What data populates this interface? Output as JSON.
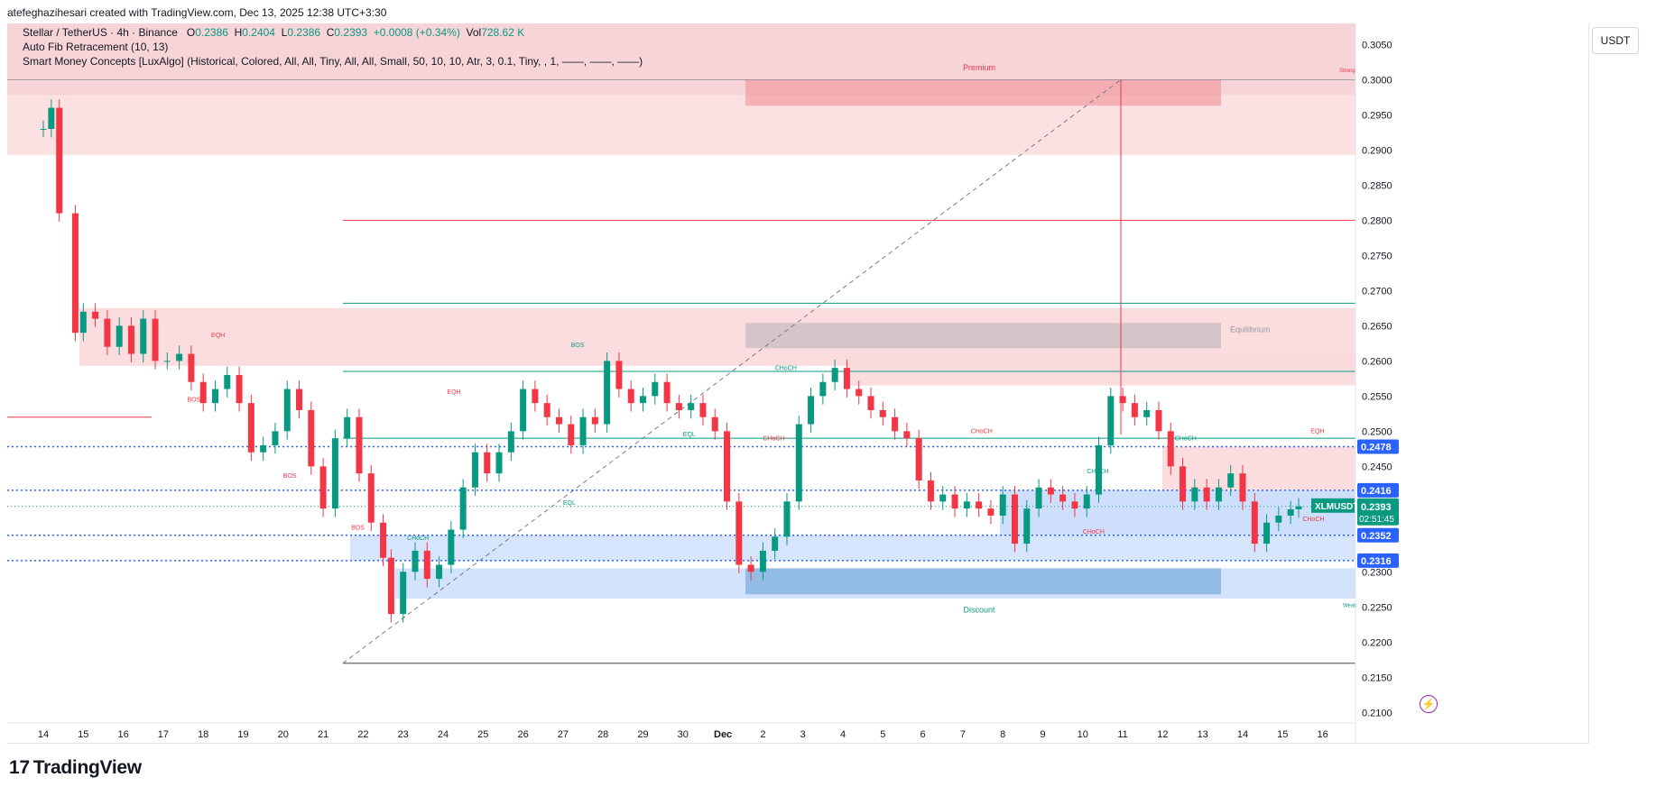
{
  "header": {
    "text": "atefeghazihesari created with TradingView.com, Dec 13, 2025 12:38 UTC+3:30"
  },
  "legend": {
    "line1_title": "Stellar / TetherUS · 4h · Binance",
    "open_label": "O",
    "open": "0.2386",
    "high_label": "H",
    "high": "0.2404",
    "low_label": "L",
    "low": "0.2386",
    "close_label": "C",
    "close": "0.2393",
    "change": "+0.0008 (+0.34%)",
    "vol_label": "Vol",
    "vol": "728.62 K",
    "line2": "Auto Fib Retracement (10, 13)",
    "line3": "Smart Money Concepts [LuxAlgo] (Historical, Colored, All, All, Tiny, All, All, Small, 50, 10, 10, Atr, 3, 0.1, Tiny, , 1, ——, ——, ——)"
  },
  "currency": "USDT",
  "footer": {
    "brand": "TradingView",
    "mark": "17"
  },
  "colors": {
    "up": "#089981",
    "down": "#f23645",
    "premium": "#f23645",
    "discount": "#2962ff"
  },
  "icons": {
    "bolt": "lightning-icon",
    "logo": "tradingview-logo-icon"
  },
  "chart_data": {
    "type": "candlestick",
    "symbol": "XLMUSDT",
    "price_axis": {
      "ylim": [
        0.2085,
        0.308
      ],
      "ticks": [
        "0.3050",
        "0.3000",
        "0.2950",
        "0.2900",
        "0.2850",
        "0.2800",
        "0.2750",
        "0.2700",
        "0.2650",
        "0.2600",
        "0.2550",
        "0.2500",
        "0.2450",
        "0.2400",
        "0.2350",
        "0.2300",
        "0.2250",
        "0.2200",
        "0.2150",
        "0.2100"
      ],
      "tick_values": [
        0.305,
        0.3,
        0.295,
        0.29,
        0.285,
        0.28,
        0.275,
        0.27,
        0.265,
        0.26,
        0.255,
        0.25,
        0.245,
        0.24,
        0.235,
        0.23,
        0.225,
        0.22,
        0.215,
        0.21
      ]
    },
    "time_axis": {
      "labels": [
        "14",
        "15",
        "16",
        "17",
        "18",
        "19",
        "20",
        "21",
        "22",
        "23",
        "24",
        "25",
        "26",
        "27",
        "28",
        "29",
        "30",
        "Dec",
        "2",
        "3",
        "4",
        "5",
        "6",
        "7",
        "8",
        "9",
        "10",
        "11",
        "12",
        "13",
        "14",
        "15",
        "16"
      ]
    },
    "price_labels": [
      {
        "text": "0.2478",
        "value": 0.2478,
        "color": "#2962ff"
      },
      {
        "text": "0.2416",
        "value": 0.2416,
        "color": "#2962ff"
      },
      {
        "text": "0.2352",
        "value": 0.2352,
        "color": "#2962ff"
      },
      {
        "text": "0.2316",
        "value": 0.2316,
        "color": "#2962ff"
      }
    ],
    "last_price": {
      "symbol": "XLMUSDT",
      "value": "0.2393",
      "countdown": "02:51:45"
    },
    "zones": {
      "premium": "Premium",
      "equilibrium": "Equilibrium",
      "discount": "Discount",
      "strong": "Strong",
      "weak": "Weak"
    },
    "structure_labels": [
      {
        "text": "EQH",
        "t": 4.2,
        "p": 0.2634,
        "color": "#f23645"
      },
      {
        "text": "BOS",
        "t": 3.6,
        "p": 0.2542,
        "color": "#f23645"
      },
      {
        "text": "EQH",
        "t": 10.1,
        "p": 0.2553,
        "color": "#f23645"
      },
      {
        "text": "BOS",
        "t": 6.0,
        "p": 0.2434,
        "color": "#f23645"
      },
      {
        "text": "BOS",
        "t": 7.7,
        "p": 0.236,
        "color": "#f23645"
      },
      {
        "text": "BOS",
        "t": 13.2,
        "p": 0.262,
        "color": "#089981"
      },
      {
        "text": "EQL",
        "t": 16.0,
        "p": 0.2493,
        "color": "#089981"
      },
      {
        "text": "EQL",
        "t": 13.0,
        "p": 0.2395,
        "color": "#089981"
      },
      {
        "text": "CHoCH",
        "t": 18.3,
        "p": 0.2587,
        "color": "#089981"
      },
      {
        "text": "CHoCH",
        "t": 18.0,
        "p": 0.2487,
        "color": "#f23645"
      },
      {
        "text": "CHoCH",
        "t": 23.2,
        "p": 0.2497,
        "color": "#f23645"
      },
      {
        "text": "CHoCH",
        "t": 26.1,
        "p": 0.244,
        "color": "#089981"
      },
      {
        "text": "CHoCH",
        "t": 28.3,
        "p": 0.2487,
        "color": "#089981"
      },
      {
        "text": "CHoCH",
        "t": 26.0,
        "p": 0.2354,
        "color": "#f23645"
      },
      {
        "text": "EQH",
        "t": 31.7,
        "p": 0.2497,
        "color": "#f23645"
      },
      {
        "text": "CHoCH",
        "t": 31.5,
        "p": 0.2372,
        "color": "#f23645"
      },
      {
        "text": "CHoCH",
        "t": 9.1,
        "p": 0.2345,
        "color": "#089981"
      }
    ],
    "candles_close_path": [
      [
        0.0,
        0.293
      ],
      [
        0.2,
        0.296
      ],
      [
        0.4,
        0.281
      ],
      [
        0.8,
        0.264
      ],
      [
        1.0,
        0.267
      ],
      [
        1.3,
        0.266
      ],
      [
        1.6,
        0.262
      ],
      [
        1.9,
        0.265
      ],
      [
        2.2,
        0.261
      ],
      [
        2.5,
        0.266
      ],
      [
        2.8,
        0.26
      ],
      [
        3.1,
        0.26
      ],
      [
        3.4,
        0.261
      ],
      [
        3.7,
        0.257
      ],
      [
        4.0,
        0.254
      ],
      [
        4.3,
        0.256
      ],
      [
        4.6,
        0.258
      ],
      [
        4.9,
        0.254
      ],
      [
        5.2,
        0.247
      ],
      [
        5.5,
        0.248
      ],
      [
        5.8,
        0.25
      ],
      [
        6.1,
        0.256
      ],
      [
        6.4,
        0.253
      ],
      [
        6.7,
        0.245
      ],
      [
        7.0,
        0.239
      ],
      [
        7.3,
        0.249
      ],
      [
        7.6,
        0.252
      ],
      [
        7.9,
        0.244
      ],
      [
        8.2,
        0.237
      ],
      [
        8.5,
        0.232
      ],
      [
        8.7,
        0.224
      ],
      [
        9.0,
        0.23
      ],
      [
        9.3,
        0.233
      ],
      [
        9.6,
        0.229
      ],
      [
        9.9,
        0.231
      ],
      [
        10.2,
        0.236
      ],
      [
        10.5,
        0.242
      ],
      [
        10.8,
        0.247
      ],
      [
        11.1,
        0.244
      ],
      [
        11.4,
        0.247
      ],
      [
        11.7,
        0.25
      ],
      [
        12.0,
        0.256
      ],
      [
        12.3,
        0.254
      ],
      [
        12.6,
        0.252
      ],
      [
        12.9,
        0.251
      ],
      [
        13.2,
        0.248
      ],
      [
        13.5,
        0.252
      ],
      [
        13.8,
        0.251
      ],
      [
        14.1,
        0.26
      ],
      [
        14.4,
        0.256
      ],
      [
        14.7,
        0.254
      ],
      [
        15.0,
        0.255
      ],
      [
        15.3,
        0.257
      ],
      [
        15.6,
        0.254
      ],
      [
        15.9,
        0.253
      ],
      [
        16.2,
        0.254
      ],
      [
        16.5,
        0.252
      ],
      [
        16.8,
        0.25
      ],
      [
        17.1,
        0.24
      ],
      [
        17.4,
        0.231
      ],
      [
        17.7,
        0.23
      ],
      [
        18.0,
        0.233
      ],
      [
        18.3,
        0.235
      ],
      [
        18.6,
        0.24
      ],
      [
        18.9,
        0.251
      ],
      [
        19.2,
        0.255
      ],
      [
        19.5,
        0.257
      ],
      [
        19.8,
        0.259
      ],
      [
        20.1,
        0.256
      ],
      [
        20.4,
        0.255
      ],
      [
        20.7,
        0.253
      ],
      [
        21.0,
        0.252
      ],
      [
        21.3,
        0.25
      ],
      [
        21.6,
        0.249
      ],
      [
        21.9,
        0.243
      ],
      [
        22.2,
        0.24
      ],
      [
        22.5,
        0.241
      ],
      [
        22.8,
        0.239
      ],
      [
        23.1,
        0.24
      ],
      [
        23.4,
        0.239
      ],
      [
        23.7,
        0.238
      ],
      [
        24.0,
        0.241
      ],
      [
        24.3,
        0.234
      ],
      [
        24.6,
        0.239
      ],
      [
        24.9,
        0.242
      ],
      [
        25.2,
        0.241
      ],
      [
        25.5,
        0.24
      ],
      [
        25.8,
        0.239
      ],
      [
        26.1,
        0.241
      ],
      [
        26.4,
        0.248
      ],
      [
        26.7,
        0.255
      ],
      [
        27.0,
        0.254
      ],
      [
        27.3,
        0.252
      ],
      [
        27.6,
        0.253
      ],
      [
        27.9,
        0.25
      ],
      [
        28.2,
        0.245
      ],
      [
        28.5,
        0.24
      ],
      [
        28.8,
        0.242
      ],
      [
        29.1,
        0.24
      ],
      [
        29.4,
        0.242
      ],
      [
        29.7,
        0.244
      ],
      [
        30.0,
        0.24
      ],
      [
        30.3,
        0.234
      ],
      [
        30.6,
        0.237
      ],
      [
        30.9,
        0.238
      ],
      [
        31.2,
        0.2389
      ],
      [
        31.4,
        0.2393
      ]
    ]
  }
}
